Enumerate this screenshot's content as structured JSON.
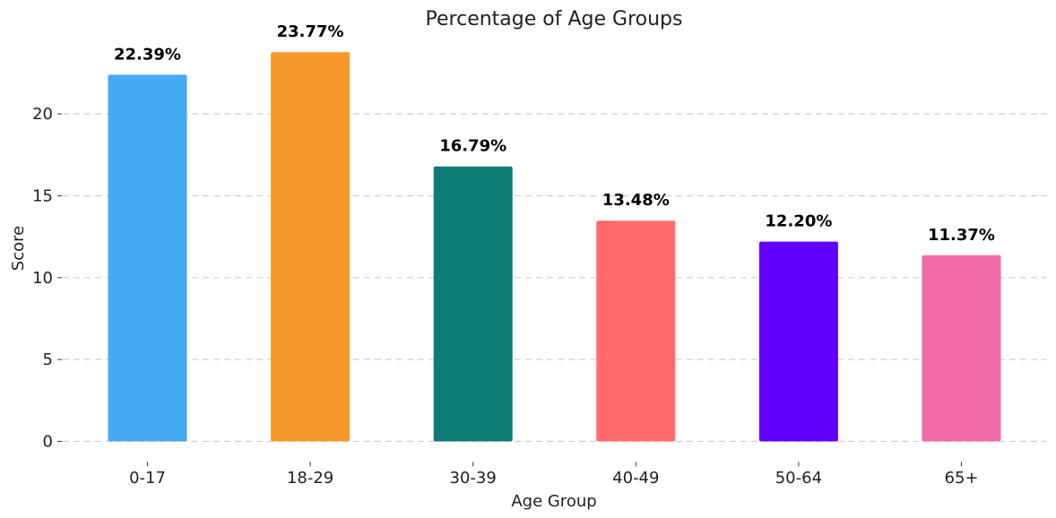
{
  "chart_data": {
    "type": "bar",
    "title": "Percentage of Age Groups",
    "xlabel": "Age Group",
    "ylabel": "Score",
    "categories": [
      "0-17",
      "18-29",
      "30-39",
      "40-49",
      "50-64",
      "65+"
    ],
    "values": [
      22.39,
      23.77,
      16.79,
      13.48,
      12.2,
      11.37
    ],
    "value_labels": [
      "22.39%",
      "23.77%",
      "16.79%",
      "13.48%",
      "12.20%",
      "11.37%"
    ],
    "colors": [
      "#45aaf2",
      "#f7982b",
      "#0f7c77",
      "#ff6b6b",
      "#6200ff",
      "#f26ca7"
    ],
    "yticks": [
      0,
      5,
      10,
      15,
      20
    ],
    "ylim": [
      -1.2,
      25
    ],
    "grid": "horizontal dashed",
    "legend": "none"
  }
}
